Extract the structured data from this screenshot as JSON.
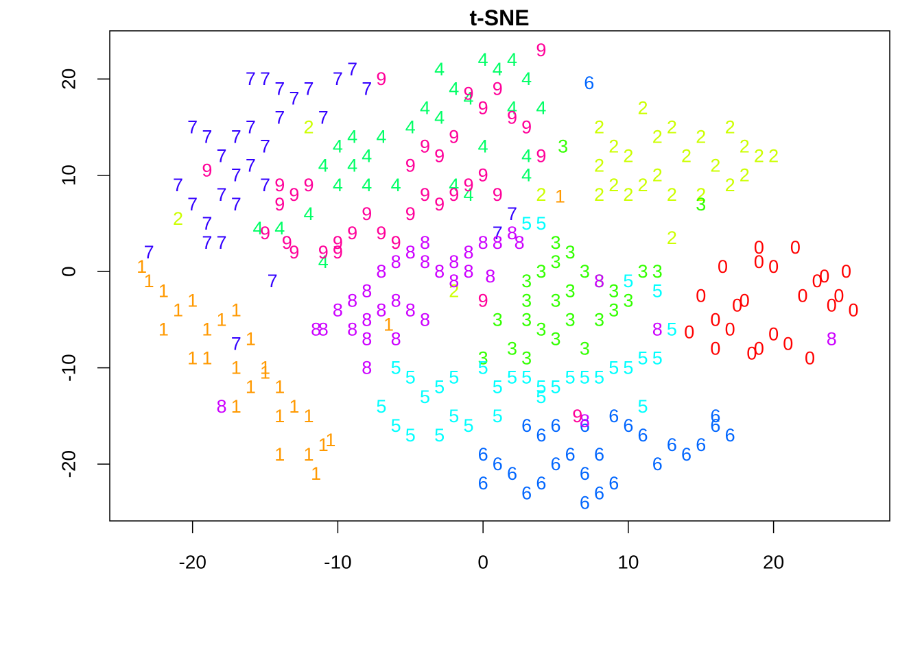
{
  "chart_data": {
    "type": "scatter",
    "marker": "series-name",
    "title": "t-SNE",
    "xlim": [
      -25.7,
      28.0
    ],
    "ylim": [
      -25.9,
      25.0
    ],
    "xticks": [
      -20,
      -10,
      0,
      10,
      20
    ],
    "yticks": [
      -20,
      -10,
      0,
      10,
      20
    ],
    "grid": false,
    "series": [
      {
        "name": "0",
        "color": "#ff0000",
        "x": [
          15,
          16,
          16.5,
          17.5,
          19,
          20,
          21.5,
          22,
          23,
          24,
          25.5,
          19,
          20,
          14.2,
          16,
          18,
          21,
          23.5,
          25,
          22.5,
          17,
          19,
          18.5,
          24.5
        ],
        "values": [
          -2.5,
          -5,
          0.5,
          -3.5,
          2.5,
          0.5,
          2.5,
          -2.5,
          -1,
          -3.5,
          -4,
          -8,
          -6.5,
          -6.3,
          -8,
          -3,
          -7.5,
          -0.5,
          0,
          -9,
          -6,
          1,
          -8.5,
          -2.5
        ]
      },
      {
        "name": "1",
        "color": "#ff9900",
        "x": [
          -23.5,
          -23,
          -22,
          -21,
          -22,
          -20,
          -19,
          -18,
          -17,
          -16,
          -19,
          -17,
          -20,
          -16,
          -15,
          -14,
          -13,
          -14,
          -12,
          -11,
          -12,
          -10.5,
          -14,
          -11.5,
          -15,
          -17,
          5.3,
          -6.5
        ],
        "values": [
          0.5,
          -1,
          -2,
          -4,
          -6,
          -3,
          -6,
          -5,
          -4,
          -7,
          -9,
          -10,
          -9,
          -12,
          -10,
          -12,
          -14,
          -15,
          -15,
          -18,
          -19,
          -17.5,
          -19,
          -21,
          -10.5,
          -14,
          7.8,
          -5.5
        ]
      },
      {
        "name": "2",
        "color": "#ccff00",
        "x": [
          8,
          9,
          10,
          11,
          12,
          13,
          14,
          15,
          16,
          17,
          18,
          19,
          8,
          9,
          10,
          11,
          12,
          13,
          15,
          17,
          18,
          8,
          -12,
          20,
          -2,
          13,
          4,
          -21
        ],
        "values": [
          15,
          13,
          12,
          17,
          14,
          15,
          12,
          14,
          11,
          15,
          13,
          12,
          11,
          9,
          8,
          9,
          10,
          8,
          8,
          9,
          10,
          8,
          15,
          12,
          -2,
          3.5,
          8,
          5.5
        ]
      },
      {
        "name": "3",
        "color": "#33ff00",
        "x": [
          3,
          4,
          5,
          6,
          7,
          8,
          9,
          10,
          11,
          3,
          4,
          5,
          6,
          7,
          8,
          2,
          1,
          5,
          6,
          9,
          5,
          3,
          15,
          5.5,
          12,
          3,
          0
        ],
        "values": [
          -1,
          0,
          1,
          -2,
          0,
          -1,
          -4,
          -3,
          0,
          -5,
          -6,
          -7,
          -5,
          -8,
          -5,
          -8,
          -5,
          3,
          2,
          -2,
          -3,
          -3,
          7,
          13,
          0,
          -9,
          -9
        ]
      },
      {
        "name": "4",
        "color": "#00ff66",
        "x": [
          -14,
          -12,
          -11,
          -10,
          -9,
          -8,
          -7,
          -6,
          -5,
          -4,
          -3,
          -3,
          -2,
          -1,
          0,
          1,
          2,
          3,
          4,
          2,
          3,
          -2,
          -1,
          -10,
          -9,
          -15.5,
          -11,
          -8,
          0,
          3
        ],
        "values": [
          4.5,
          6,
          11,
          13,
          14,
          12,
          14,
          9,
          15,
          17,
          16,
          21,
          19,
          18,
          22,
          21,
          22,
          20,
          17,
          17,
          12,
          9,
          8,
          9,
          11,
          4.5,
          1,
          9,
          13,
          10
        ]
      },
      {
        "name": "5",
        "color": "#00ffff",
        "x": [
          -7,
          -6,
          -5,
          -4,
          -3,
          -2,
          -1,
          -2,
          0,
          1,
          2,
          3,
          4,
          5,
          6,
          7,
          8,
          9,
          10,
          11,
          12,
          -5,
          -6,
          1,
          4,
          11,
          13,
          10,
          12,
          3,
          4,
          -3
        ],
        "values": [
          -14,
          -16,
          -17,
          -13,
          -12,
          -15,
          -16,
          -11,
          -10,
          -12,
          -11,
          -11,
          -12,
          -12,
          -11,
          -11,
          -11,
          -10,
          -10,
          -9,
          -9,
          -11,
          -10,
          -15,
          -13,
          -14,
          -6,
          -1,
          -2,
          5,
          5,
          -17
        ]
      },
      {
        "name": "6",
        "color": "#0066ff",
        "x": [
          0,
          1,
          2,
          3,
          4,
          5,
          6,
          7,
          8,
          9,
          4,
          5,
          7,
          8,
          9,
          10,
          11,
          12,
          13,
          14,
          15,
          16,
          17,
          16,
          0,
          3,
          7,
          7.3
        ],
        "values": [
          -19,
          -20,
          -21,
          -23,
          -22,
          -20,
          -19,
          -21,
          -23,
          -22,
          -17,
          -16,
          -16,
          -19,
          -15,
          -16,
          -17,
          -20,
          -18,
          -19,
          -18,
          -16,
          -17,
          -15,
          -22,
          -16,
          -24,
          19.6
        ]
      },
      {
        "name": "7",
        "color": "#3300ff",
        "x": [
          -21,
          -20,
          -19,
          -18,
          -17,
          -16,
          -15,
          -17,
          -19,
          -20,
          -19,
          -18,
          -17,
          -16,
          -15,
          -14,
          -13,
          -12,
          -11,
          -10,
          -9,
          -8,
          -16,
          -15,
          -14,
          -18,
          -14.5,
          -23,
          -17,
          2,
          1
        ],
        "values": [
          9,
          7,
          5,
          8,
          10,
          11,
          9,
          7,
          3,
          15,
          14,
          12,
          14,
          15,
          13,
          16,
          18,
          19,
          16,
          20,
          21,
          19,
          20,
          20,
          19,
          3,
          -1,
          2,
          -7.5,
          6,
          4
        ]
      },
      {
        "name": "8",
        "color": "#cc00ff",
        "x": [
          -11,
          -10,
          -9,
          -8,
          -7,
          -6,
          -5,
          -4,
          -8,
          -7,
          -6,
          -5,
          -4,
          -3,
          -2,
          -1,
          0,
          1,
          2,
          -2,
          -8,
          -8,
          -18,
          8,
          12,
          -4,
          -9,
          -6,
          -11.5,
          -1,
          0.5,
          2.5,
          7,
          24
        ],
        "values": [
          -6,
          -4,
          -3,
          -5,
          -4,
          -3,
          -4,
          -5,
          -2,
          0,
          1,
          2,
          1,
          0,
          1,
          2,
          3,
          3,
          4,
          -1,
          -7,
          -10,
          -14,
          -1,
          -6,
          3,
          -6,
          -7,
          -6,
          0,
          -0.5,
          3,
          -15.5,
          -7
        ]
      },
      {
        "name": "9",
        "color": "#ff0099",
        "x": [
          -14,
          -13,
          -12,
          -14,
          -15,
          -13,
          -11,
          -10,
          -9,
          -8,
          -7,
          -6,
          -5,
          -4,
          -3,
          -2,
          -1,
          0,
          1,
          -3,
          -2,
          0,
          1,
          2,
          3,
          4,
          -10,
          -19,
          -7,
          4,
          -1,
          -4,
          -5,
          0,
          6.5,
          -13.5
        ],
        "values": [
          9,
          8,
          9,
          7,
          4,
          2,
          2,
          3,
          4,
          6,
          4,
          3,
          6,
          8,
          7,
          8,
          9,
          10,
          8,
          12,
          14,
          17,
          19,
          16,
          15,
          12,
          2,
          10.5,
          20,
          23,
          18.5,
          13,
          11,
          -3,
          -15,
          3
        ]
      }
    ]
  }
}
